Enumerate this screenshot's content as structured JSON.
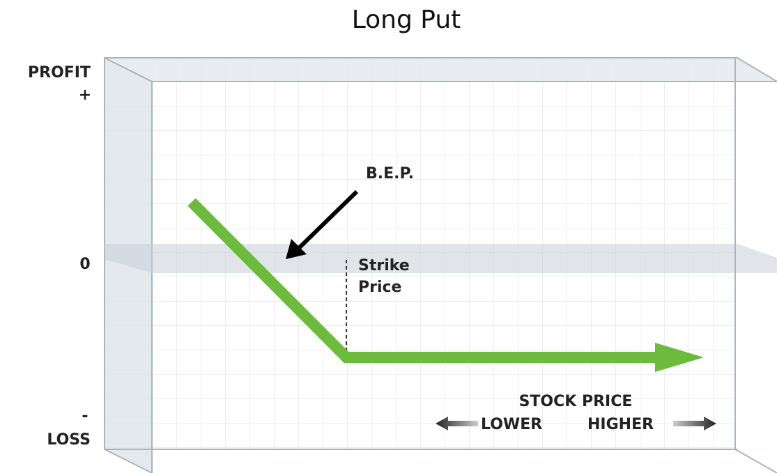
{
  "title": "Long Put",
  "y_axis": {
    "top": "PROFIT",
    "plus": "+",
    "zero": "0",
    "minus": "-",
    "bottom": "LOSS"
  },
  "annotations": {
    "bep": "B.E.P.",
    "strike_line1": "Strike",
    "strike_line2": "Price"
  },
  "x_axis": {
    "title": "STOCK PRICE",
    "lower": "LOWER",
    "higher": "HIGHER"
  }
}
